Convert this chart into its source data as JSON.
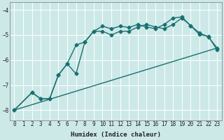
{
  "xlabel": "Humidex (Indice chaleur)",
  "ylabel": "",
  "background_color": "#cce9e8",
  "line_color": "#1a7070",
  "grid_color": "#ffffff",
  "xlim": [
    -0.5,
    23.5
  ],
  "ylim": [
    -8.4,
    -3.7
  ],
  "xticks": [
    0,
    1,
    2,
    3,
    4,
    5,
    6,
    7,
    8,
    9,
    10,
    11,
    12,
    13,
    14,
    15,
    16,
    17,
    18,
    19,
    20,
    21,
    22,
    23
  ],
  "yticks": [
    -8,
    -7,
    -6,
    -5,
    -4
  ],
  "curve1_x": [
    0,
    2,
    3,
    4,
    5,
    6,
    7,
    8,
    9,
    10,
    11,
    12,
    13,
    14,
    15,
    16,
    17,
    18,
    19,
    20,
    21,
    22,
    23
  ],
  "curve1_y": [
    -8.0,
    -7.3,
    -7.55,
    -7.55,
    -6.6,
    -6.15,
    -5.4,
    -5.28,
    -4.85,
    -4.65,
    -4.75,
    -4.65,
    -4.7,
    -4.58,
    -4.68,
    -4.75,
    -4.58,
    -4.32,
    -4.28,
    -4.63,
    -4.92,
    -5.08,
    -5.52
  ],
  "curve2_x": [
    0,
    2,
    3,
    4,
    5,
    6,
    7,
    8,
    9,
    10,
    11,
    12,
    13,
    14,
    15,
    16,
    17,
    18,
    19,
    20,
    21,
    22,
    23
  ],
  "curve2_y": [
    -8.0,
    -7.3,
    -7.55,
    -7.55,
    -6.6,
    -6.15,
    -6.55,
    -5.28,
    -4.85,
    -4.85,
    -5.0,
    -4.85,
    -4.85,
    -4.68,
    -4.58,
    -4.68,
    -4.75,
    -4.58,
    -4.32,
    -4.63,
    -4.98,
    -5.05,
    -5.6
  ],
  "curve3_x": [
    0,
    23
  ],
  "curve3_y": [
    -8.0,
    -5.52
  ],
  "marker": "D",
  "marker_size": 2.5,
  "line_width": 1.0
}
